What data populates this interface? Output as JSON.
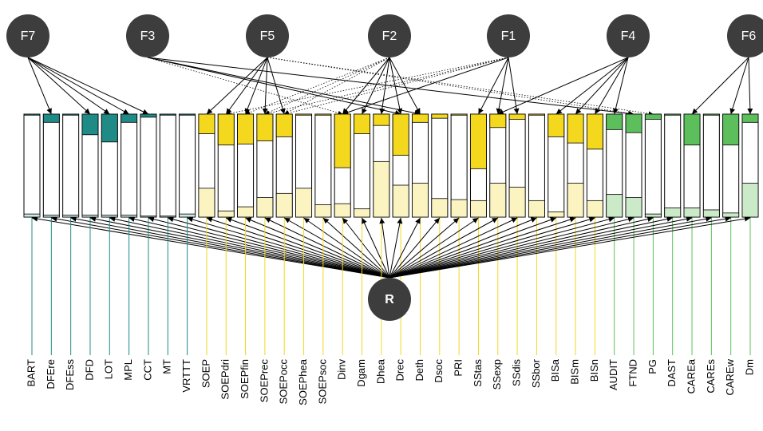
{
  "factors": [
    "F7",
    "F3",
    "F5",
    "F2",
    "F1",
    "F4",
    "F6"
  ],
  "general_factor": "R",
  "palette": [
    {
      "strong": "#1f8a86",
      "light": "#cde9e5"
    },
    {
      "strong": "#f4d81e",
      "light": "#fbf3c0"
    },
    {
      "strong": "#5cbf5c",
      "light": "#cbeac7"
    }
  ],
  "variables": [
    {
      "name": "BART",
      "group": 0,
      "specific": 1,
      "general": 3
    },
    {
      "name": "DFEre",
      "group": 0,
      "specific": 8,
      "general": 2
    },
    {
      "name": "DFEss",
      "group": 0,
      "specific": 1,
      "general": 2
    },
    {
      "name": "DFD",
      "group": 0,
      "specific": 20,
      "general": 2
    },
    {
      "name": "LOT",
      "group": 0,
      "specific": 27,
      "general": 2
    },
    {
      "name": "MPL",
      "group": 0,
      "specific": 8,
      "general": 2
    },
    {
      "name": "CCT",
      "group": 0,
      "specific": 3,
      "general": 1
    },
    {
      "name": "MT",
      "group": 0,
      "specific": 1,
      "general": 1
    },
    {
      "name": "VRTTT",
      "group": 0,
      "specific": 1,
      "general": 3
    },
    {
      "name": "SOEP",
      "group": 1,
      "specific": 19,
      "general": 28
    },
    {
      "name": "SOEPdri",
      "group": 1,
      "specific": 30,
      "general": 6
    },
    {
      "name": "SOEPfin",
      "group": 1,
      "specific": 29,
      "general": 10
    },
    {
      "name": "SOEPrec",
      "group": 1,
      "specific": 26,
      "general": 19
    },
    {
      "name": "SOEPocc",
      "group": 1,
      "specific": 22,
      "general": 23
    },
    {
      "name": "SOEPhea",
      "group": 1,
      "specific": 1,
      "general": 28
    },
    {
      "name": "SOEPsoc",
      "group": 1,
      "specific": 1,
      "general": 12
    },
    {
      "name": "Dinv",
      "group": 1,
      "specific": 52,
      "general": 13
    },
    {
      "name": "Dgam",
      "group": 1,
      "specific": 19,
      "general": 8
    },
    {
      "name": "Dhea",
      "group": 1,
      "specific": 11,
      "general": 54
    },
    {
      "name": "Drec",
      "group": 1,
      "specific": 40,
      "general": 31
    },
    {
      "name": "Deth",
      "group": 1,
      "specific": 8,
      "general": 33
    },
    {
      "name": "Dsoc",
      "group": 1,
      "specific": 4,
      "general": 18
    },
    {
      "name": "PRI",
      "group": 1,
      "specific": 1,
      "general": 17
    },
    {
      "name": "SStas",
      "group": 1,
      "specific": 53,
      "general": 16
    },
    {
      "name": "SSexp",
      "group": 1,
      "specific": 13,
      "general": 33
    },
    {
      "name": "SSdis",
      "group": 1,
      "specific": 5,
      "general": 29
    },
    {
      "name": "SSbor",
      "group": 1,
      "specific": 1,
      "general": 16
    },
    {
      "name": "BISa",
      "group": 1,
      "specific": 22,
      "general": 5
    },
    {
      "name": "BISm",
      "group": 1,
      "specific": 28,
      "general": 33
    },
    {
      "name": "BISn",
      "group": 1,
      "specific": 34,
      "general": 16
    },
    {
      "name": "AUDIT",
      "group": 2,
      "specific": 15,
      "general": 22
    },
    {
      "name": "FTND",
      "group": 2,
      "specific": 18,
      "general": 19
    },
    {
      "name": "PG",
      "group": 2,
      "specific": 5,
      "general": 3
    },
    {
      "name": "DAST",
      "group": 2,
      "specific": 1,
      "general": 9
    },
    {
      "name": "CAREa",
      "group": 2,
      "specific": 30,
      "general": 9
    },
    {
      "name": "CAREs",
      "group": 2,
      "specific": 1,
      "general": 7
    },
    {
      "name": "CAREw",
      "group": 2,
      "specific": 30,
      "general": 4
    },
    {
      "name": "Dm",
      "group": 2,
      "specific": 8,
      "general": 33
    }
  ]
}
